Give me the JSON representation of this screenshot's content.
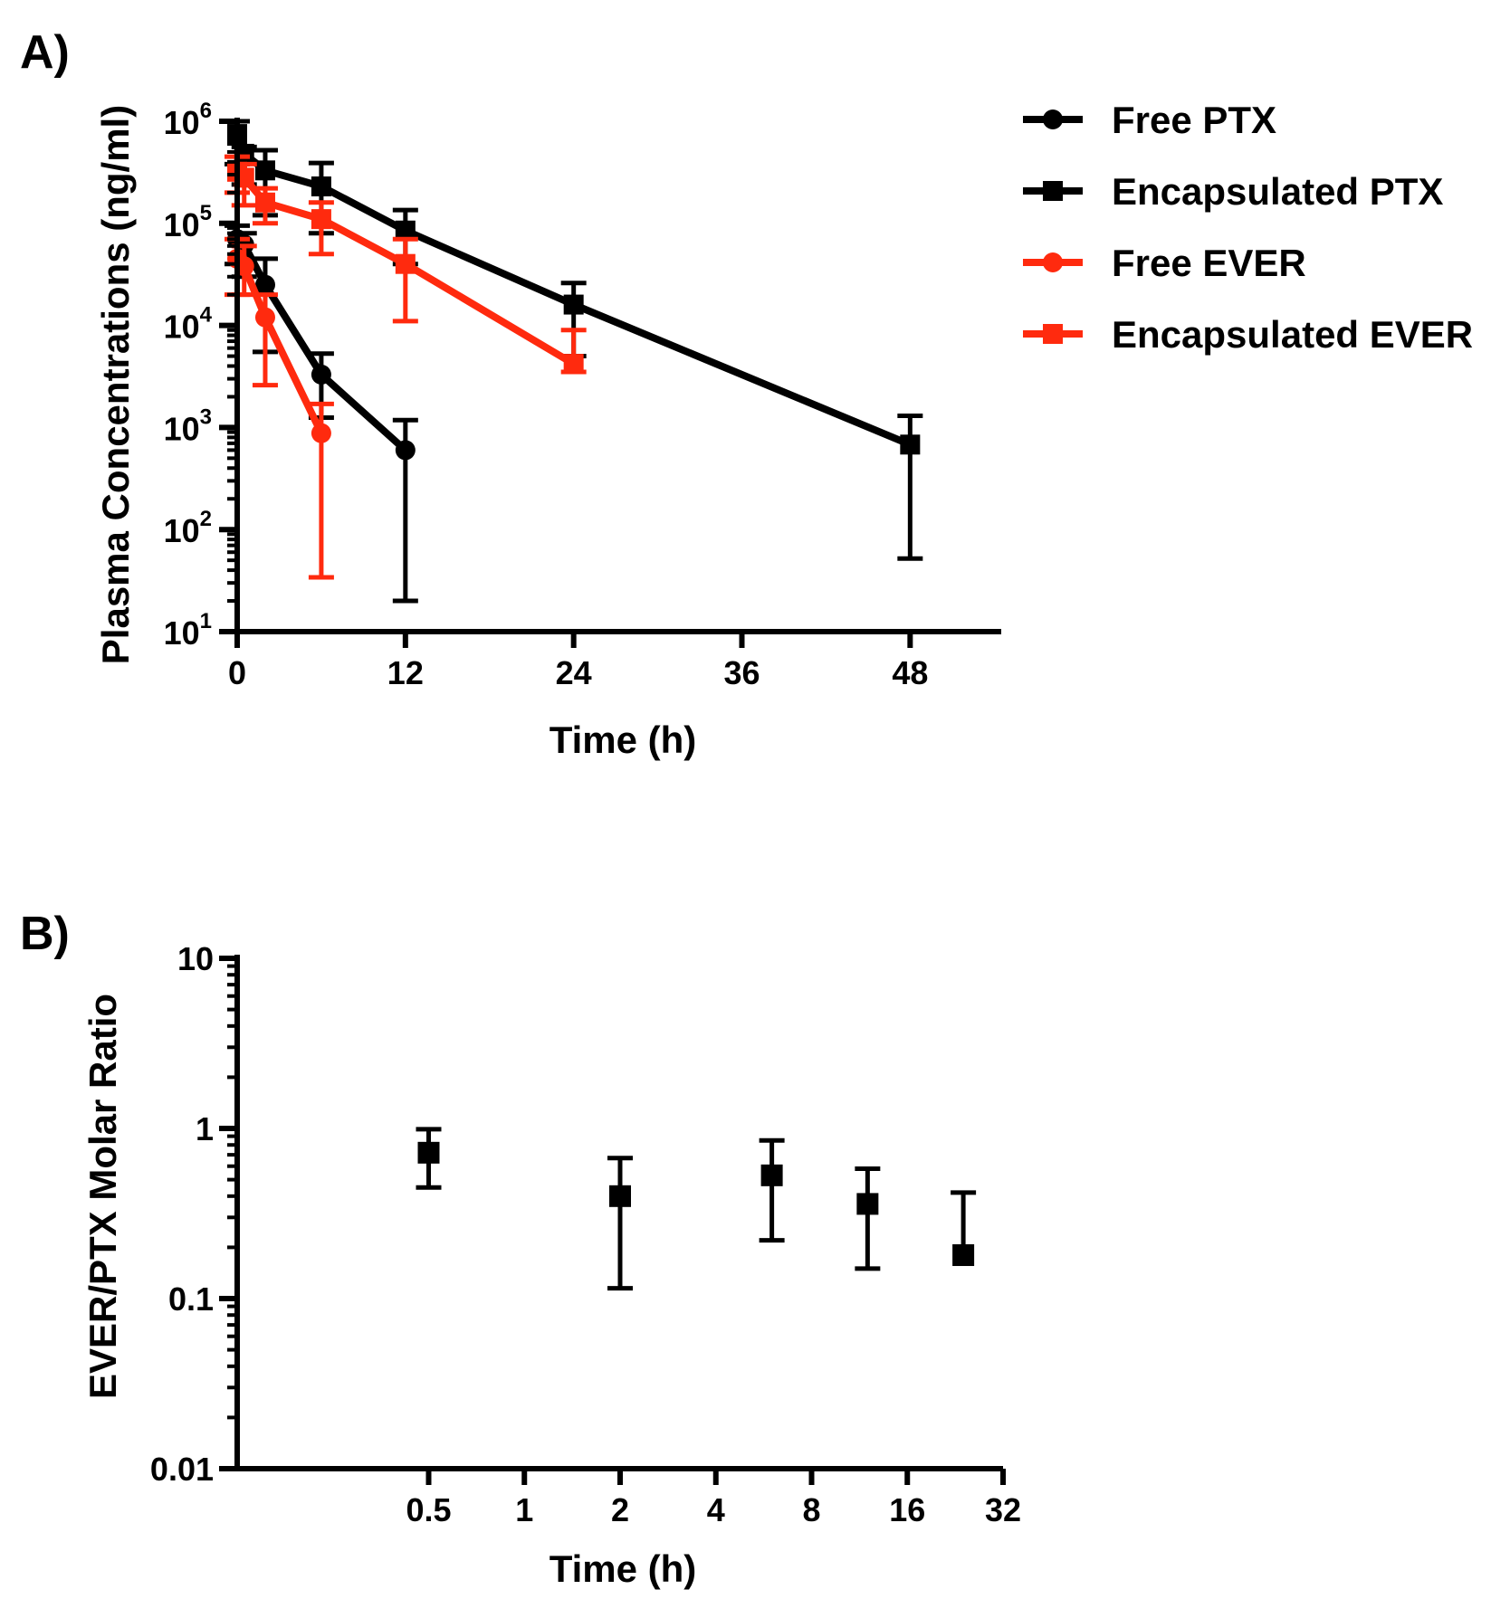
{
  "panels": {
    "a_label": "A)",
    "b_label": "B)"
  },
  "colors": {
    "ptx": "#000000",
    "ever": "#ff2a0e"
  },
  "chart_data": [
    {
      "type": "line",
      "panel": "A)",
      "xlabel": "Time (h)",
      "ylabel": "Plasma Concentrations (ng/ml)",
      "xlim": [
        0,
        52
      ],
      "ylim": [
        10,
        1000000
      ],
      "yscale": "log",
      "xticks": [
        0,
        12,
        24,
        36,
        48
      ],
      "yticks": [
        {
          "base": "10",
          "exp": "1",
          "value": 10
        },
        {
          "base": "10",
          "exp": "2",
          "value": 100
        },
        {
          "base": "10",
          "exp": "3",
          "value": 1000
        },
        {
          "base": "10",
          "exp": "4",
          "value": 10000
        },
        {
          "base": "10",
          "exp": "5",
          "value": 100000
        },
        {
          "base": "10",
          "exp": "6",
          "value": 1000000
        }
      ],
      "legend_position": "right",
      "series": [
        {
          "name": "Free PTX",
          "marker": "circle",
          "color": "#000000",
          "x": [
            0,
            0.5,
            2,
            6,
            12
          ],
          "y": [
            70000,
            62000,
            25000,
            3300,
            600
          ],
          "err_low": [
            40000,
            30000,
            5500,
            1250,
            20
          ],
          "err_high": [
            95000,
            80000,
            45000,
            5300,
            1180
          ]
        },
        {
          "name": "Encapsulated PTX",
          "marker": "square",
          "color": "#000000",
          "x": [
            0,
            0.5,
            2,
            6,
            12,
            24,
            48
          ],
          "y": [
            750000,
            480000,
            330000,
            230000,
            85000,
            16000,
            680
          ],
          "err_low": [
            380000,
            240000,
            120000,
            80000,
            40000,
            5000,
            52
          ],
          "err_high": [
            1000000,
            560000,
            520000,
            390000,
            135000,
            26000,
            1300
          ]
        },
        {
          "name": "Free EVER",
          "marker": "circle",
          "color": "#ff2a0e",
          "x": [
            0,
            0.5,
            2,
            6
          ],
          "y": [
            45000,
            38000,
            12000,
            880
          ],
          "err_low": [
            20000,
            20000,
            2600,
            34
          ],
          "err_high": [
            70000,
            60000,
            20000,
            1700
          ]
        },
        {
          "name": "Encapsulated EVER",
          "marker": "square",
          "color": "#ff2a0e",
          "x": [
            0,
            0.5,
            2,
            6,
            12,
            24
          ],
          "y": [
            320000,
            280000,
            160000,
            110000,
            40000,
            4200
          ],
          "err_low": [
            200000,
            150000,
            100000,
            50000,
            11000,
            3500
          ],
          "err_high": [
            450000,
            380000,
            220000,
            160000,
            70000,
            9000
          ]
        }
      ]
    },
    {
      "type": "scatter",
      "panel": "B)",
      "xlabel": "Time (h)",
      "ylabel": "EVER/PTX Molar Ratio",
      "xscale": "log2",
      "yscale": "log",
      "xlim": [
        0.125,
        32
      ],
      "ylim": [
        0.01,
        10
      ],
      "xticks": [
        "0.5",
        "1",
        "2",
        "4",
        "8",
        "16",
        "32"
      ],
      "yticks": [
        "0.01",
        "0.1",
        "1",
        "10"
      ],
      "series": [
        {
          "marker": "square",
          "color": "#000000",
          "x": [
            0.5,
            2,
            6,
            12,
            24
          ],
          "y": [
            0.72,
            0.4,
            0.53,
            0.36,
            0.18
          ],
          "err_low": [
            0.45,
            0.115,
            0.22,
            0.15,
            0.18
          ],
          "err_high": [
            0.99,
            0.67,
            0.85,
            0.58,
            0.42
          ]
        }
      ]
    }
  ]
}
